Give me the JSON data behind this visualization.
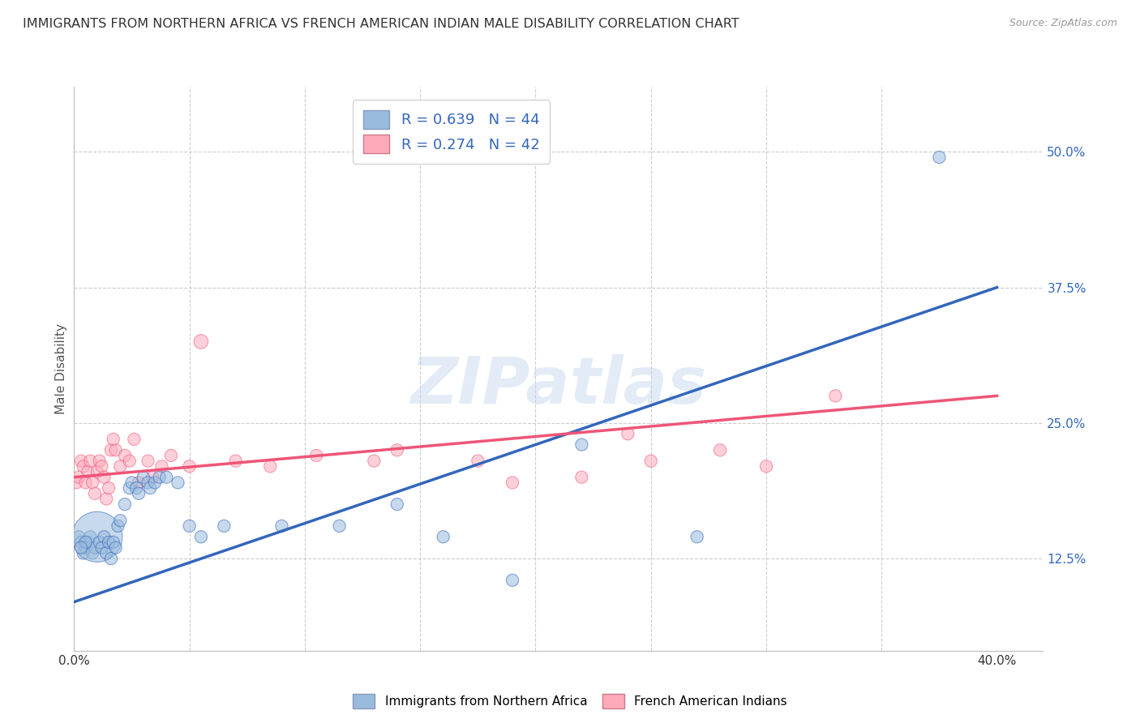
{
  "title": "IMMIGRANTS FROM NORTHERN AFRICA VS FRENCH AMERICAN INDIAN MALE DISABILITY CORRELATION CHART",
  "source": "Source: ZipAtlas.com",
  "ylabel": "Male Disability",
  "xlim": [
    0.0,
    0.42
  ],
  "ylim": [
    0.04,
    0.56
  ],
  "ytick_vals": [
    0.125,
    0.25,
    0.375,
    0.5
  ],
  "ytick_labels": [
    "12.5%",
    "25.0%",
    "37.5%",
    "50.0%"
  ],
  "xtick_vals": [
    0.0,
    0.05,
    0.1,
    0.15,
    0.2,
    0.25,
    0.3,
    0.35,
    0.4
  ],
  "xtick_labels": [
    "0.0%",
    "",
    "",
    "",
    "",
    "",
    "",
    "",
    "40.0%"
  ],
  "blue_color": "#99BBDD",
  "pink_color": "#FFAABB",
  "blue_line_color": "#3366BB",
  "pink_line_color": "#EE5577",
  "legend_blue_label": "R = 0.639   N = 44",
  "legend_pink_label": "R = 0.274   N = 42",
  "blue_scatter_x": [
    0.002,
    0.003,
    0.004,
    0.005,
    0.006,
    0.007,
    0.008,
    0.009,
    0.01,
    0.011,
    0.012,
    0.013,
    0.014,
    0.015,
    0.016,
    0.017,
    0.018,
    0.019,
    0.02,
    0.022,
    0.024,
    0.025,
    0.027,
    0.028,
    0.03,
    0.032,
    0.033,
    0.035,
    0.037,
    0.04,
    0.045,
    0.05,
    0.055,
    0.065,
    0.09,
    0.115,
    0.14,
    0.16,
    0.19,
    0.22,
    0.27,
    0.375,
    0.005,
    0.003
  ],
  "blue_scatter_y": [
    0.145,
    0.14,
    0.13,
    0.135,
    0.14,
    0.145,
    0.13,
    0.135,
    0.145,
    0.14,
    0.135,
    0.145,
    0.13,
    0.14,
    0.125,
    0.14,
    0.135,
    0.155,
    0.16,
    0.175,
    0.19,
    0.195,
    0.19,
    0.185,
    0.2,
    0.195,
    0.19,
    0.195,
    0.2,
    0.2,
    0.195,
    0.155,
    0.145,
    0.155,
    0.155,
    0.155,
    0.175,
    0.145,
    0.105,
    0.23,
    0.145,
    0.495,
    0.14,
    0.135
  ],
  "blue_scatter_size": [
    30,
    30,
    30,
    30,
    30,
    30,
    30,
    30,
    500,
    30,
    30,
    30,
    30,
    30,
    30,
    30,
    30,
    30,
    30,
    30,
    30,
    30,
    30,
    30,
    30,
    30,
    30,
    30,
    30,
    30,
    30,
    30,
    30,
    30,
    30,
    30,
    30,
    30,
    30,
    30,
    30,
    30,
    30,
    30
  ],
  "pink_scatter_x": [
    0.001,
    0.002,
    0.003,
    0.004,
    0.005,
    0.006,
    0.007,
    0.008,
    0.009,
    0.01,
    0.011,
    0.012,
    0.013,
    0.014,
    0.015,
    0.016,
    0.017,
    0.018,
    0.02,
    0.022,
    0.024,
    0.026,
    0.028,
    0.032,
    0.034,
    0.038,
    0.042,
    0.05,
    0.055,
    0.07,
    0.085,
    0.105,
    0.13,
    0.14,
    0.175,
    0.19,
    0.22,
    0.24,
    0.25,
    0.28,
    0.3,
    0.33
  ],
  "pink_scatter_y": [
    0.195,
    0.2,
    0.215,
    0.21,
    0.195,
    0.205,
    0.215,
    0.195,
    0.185,
    0.205,
    0.215,
    0.21,
    0.2,
    0.18,
    0.19,
    0.225,
    0.235,
    0.225,
    0.21,
    0.22,
    0.215,
    0.235,
    0.195,
    0.215,
    0.2,
    0.21,
    0.22,
    0.21,
    0.325,
    0.215,
    0.21,
    0.22,
    0.215,
    0.225,
    0.215,
    0.195,
    0.2,
    0.24,
    0.215,
    0.225,
    0.21,
    0.275
  ],
  "pink_scatter_size": [
    30,
    30,
    30,
    30,
    30,
    30,
    30,
    30,
    30,
    30,
    30,
    30,
    30,
    30,
    30,
    30,
    30,
    30,
    30,
    30,
    30,
    30,
    30,
    30,
    30,
    30,
    30,
    30,
    40,
    30,
    30,
    30,
    30,
    30,
    30,
    30,
    30,
    30,
    30,
    30,
    30,
    30
  ],
  "blue_trend_x": [
    0.0,
    0.4
  ],
  "blue_trend_y": [
    0.085,
    0.375
  ],
  "pink_trend_x": [
    0.0,
    0.4
  ],
  "pink_trend_y": [
    0.2,
    0.275
  ],
  "watermark_text": "ZIPatlas",
  "bottom_legend_blue": "Immigrants from Northern Africa",
  "bottom_legend_pink": "French American Indians",
  "background_color": "#FFFFFF",
  "grid_color": "#CCCCCC",
  "title_color": "#333333",
  "source_color": "#999999",
  "ylabel_color": "#555555",
  "ytick_color": "#3366BB",
  "xtick_color": "#333333",
  "title_fontsize": 11.5,
  "source_fontsize": 9,
  "axis_label_fontsize": 11,
  "tick_fontsize": 11,
  "legend_text_color": "#3366BB",
  "legend_fontsize": 13
}
